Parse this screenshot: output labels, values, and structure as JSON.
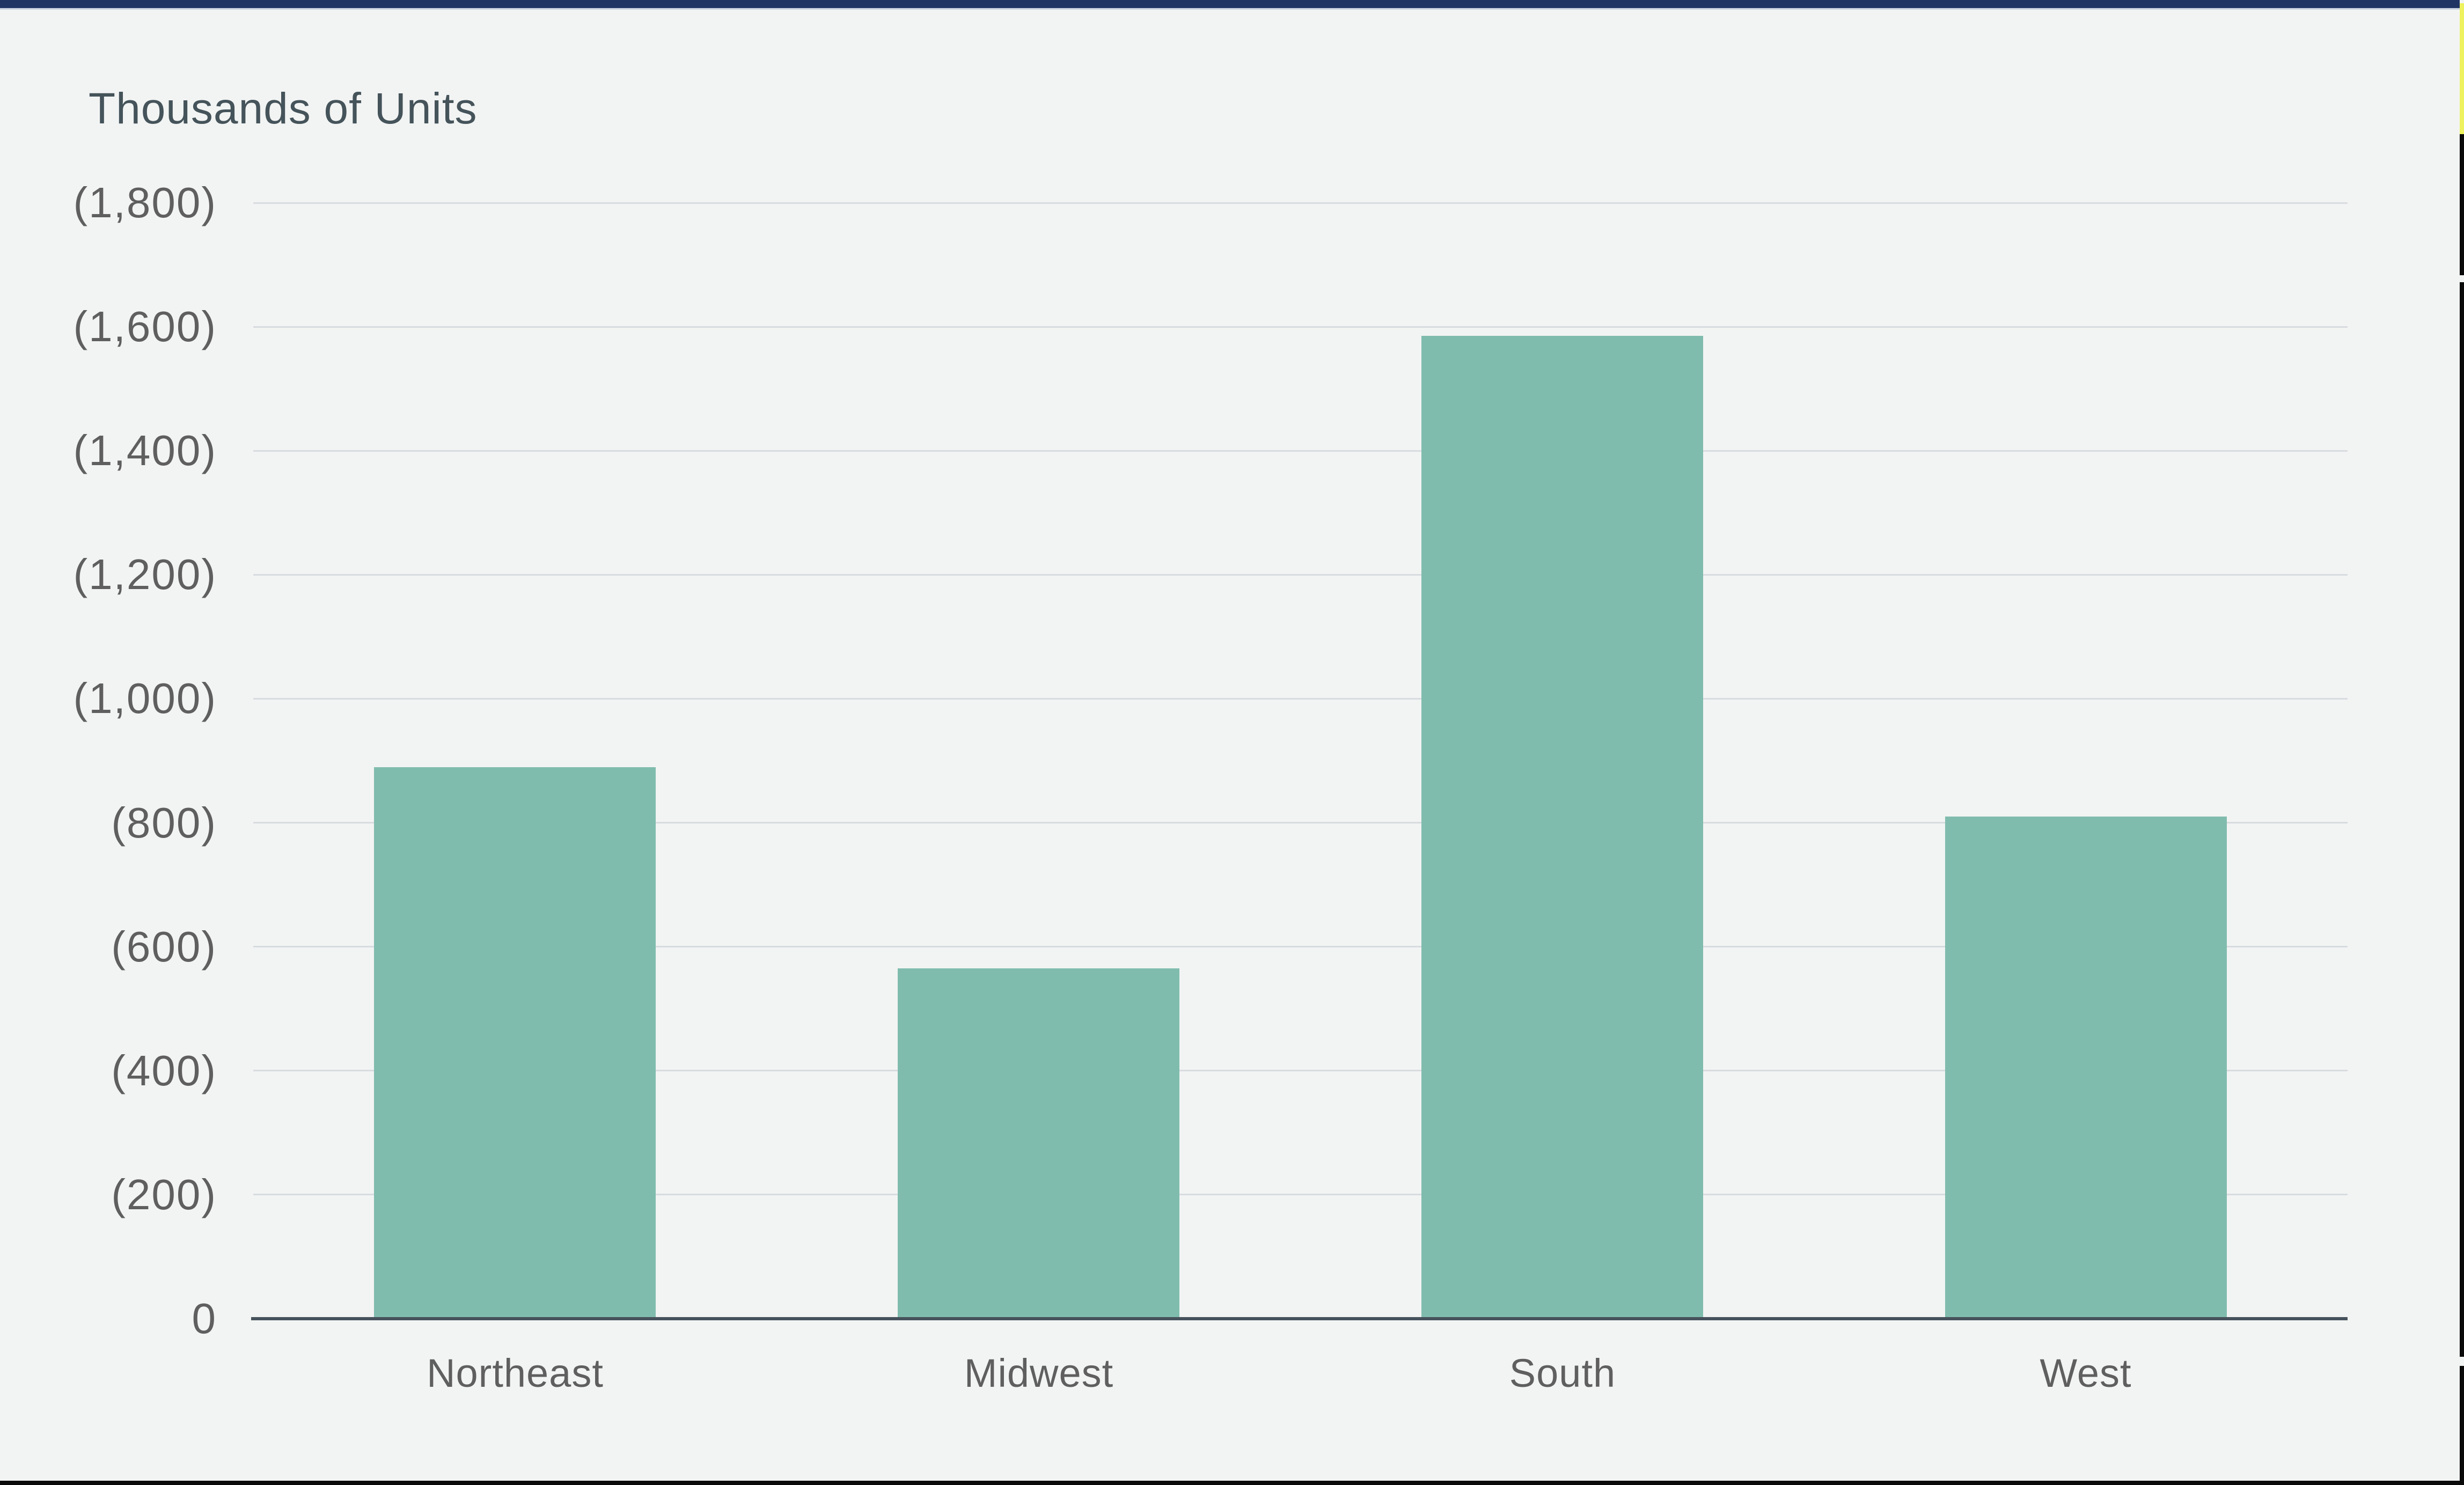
{
  "frame": {
    "top_bar_color": "#203564",
    "top_bar_underline_color": "#c9d2de",
    "bottom_edge_color": "#0a0a0a",
    "right_edge_black_color": "#0a0a0a",
    "right_edge_yellow_color": "#eef25e"
  },
  "chart_data": {
    "type": "bar",
    "title": "Thousands of Units",
    "categories": [
      "Northeast",
      "Midwest",
      "South",
      "West"
    ],
    "values": [
      890,
      565,
      1585,
      810
    ],
    "xlabel": "",
    "ylabel": "Thousands of Units",
    "ylim": [
      0,
      1800
    ],
    "ytick_interval": 200,
    "ytick_labels": [
      "0",
      "(200)",
      "(400)",
      "(600)",
      "(800)",
      "(1,000)",
      "(1,200)",
      "(1,400)",
      "(1,600)",
      "(1,800)"
    ],
    "grid": true,
    "legend": "none",
    "bar_color": "#80bcae",
    "background_color": "#f2f4f3",
    "gridline_color": "#d8dce0",
    "axis_line_color": "#46525c",
    "title_color": "#45535a",
    "tick_label_color": "#5f5f5f"
  }
}
